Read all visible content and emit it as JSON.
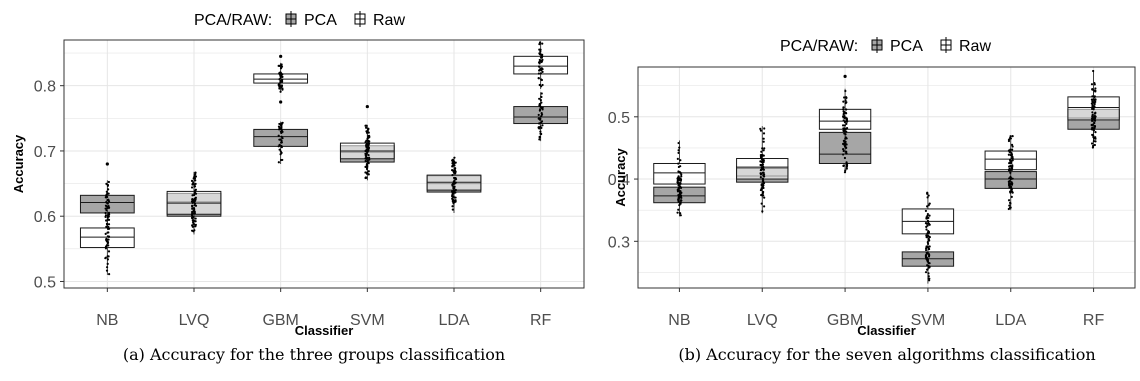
{
  "legend": {
    "title": "PCA/RAW:",
    "items": [
      "PCA",
      "Raw"
    ]
  },
  "colors": {
    "pca_fill": "#a6a6a6",
    "raw_fill": "#ffffff",
    "box_line": "#1a1a1a",
    "grid": "#e6e6e6",
    "panel_border": "#333333"
  },
  "chart_data": [
    {
      "type": "box",
      "caption": "(a) Accuracy for the three groups classification",
      "xlabel": "Classifier",
      "ylabel": "Accuracy",
      "categories": [
        "NB",
        "LVQ",
        "GBM",
        "SVM",
        "LDA",
        "RF"
      ],
      "ylim": [
        0.49,
        0.87
      ],
      "yticks": [
        0.5,
        0.6,
        0.7,
        0.8
      ],
      "ytick_labels": [
        "0.5",
        "0.6",
        "0.7",
        "0.8"
      ],
      "grid": true,
      "legend_position": "top",
      "series": [
        {
          "name": "PCA",
          "boxes": [
            {
              "q1": 0.605,
              "median": 0.621,
              "q3": 0.632,
              "min": 0.585,
              "max": 0.655
            },
            {
              "q1": 0.6,
              "median": 0.622,
              "q3": 0.635,
              "min": 0.572,
              "max": 0.665
            },
            {
              "q1": 0.707,
              "median": 0.722,
              "q3": 0.733,
              "min": 0.68,
              "max": 0.745
            },
            {
              "q1": 0.683,
              "median": 0.698,
              "q3": 0.708,
              "min": 0.655,
              "max": 0.74
            },
            {
              "q1": 0.637,
              "median": 0.65,
              "q3": 0.662,
              "min": 0.605,
              "max": 0.69
            },
            {
              "q1": 0.742,
              "median": 0.752,
              "q3": 0.768,
              "min": 0.715,
              "max": 0.79
            }
          ]
        },
        {
          "name": "Raw",
          "boxes": [
            {
              "q1": 0.552,
              "median": 0.568,
              "q3": 0.582,
              "min": 0.51,
              "max": 0.61
            },
            {
              "q1": 0.603,
              "median": 0.62,
              "q3": 0.638,
              "min": 0.575,
              "max": 0.668
            },
            {
              "q1": 0.804,
              "median": 0.81,
              "q3": 0.818,
              "min": 0.79,
              "max": 0.835
            },
            {
              "q1": 0.688,
              "median": 0.7,
              "q3": 0.712,
              "min": 0.665,
              "max": 0.73
            },
            {
              "q1": 0.64,
              "median": 0.652,
              "q3": 0.663,
              "min": 0.615,
              "max": 0.69
            },
            {
              "q1": 0.818,
              "median": 0.83,
              "q3": 0.845,
              "min": 0.795,
              "max": 0.868
            }
          ]
        }
      ],
      "outliers": [
        {
          "category": "NB",
          "value": 0.68
        },
        {
          "category": "GBM",
          "value": 0.845
        },
        {
          "category": "GBM",
          "value": 0.775
        },
        {
          "category": "SVM",
          "value": 0.768
        }
      ]
    },
    {
      "type": "box",
      "caption": "(b) Accuracy for the seven algorithms classification",
      "xlabel": "Classifier",
      "ylabel": "Accuracy",
      "categories": [
        "NB",
        "LVQ",
        "GBM",
        "SVM",
        "LDA",
        "RF"
      ],
      "ylim": [
        0.225,
        0.58
      ],
      "yticks": [
        0.3,
        0.4,
        0.5
      ],
      "ytick_labels": [
        "0.3",
        "0.4",
        "0.5"
      ],
      "grid": true,
      "legend_position": "top",
      "series": [
        {
          "name": "PCA",
          "boxes": [
            {
              "q1": 0.362,
              "median": 0.373,
              "q3": 0.387,
              "min": 0.34,
              "max": 0.405
            },
            {
              "q1": 0.395,
              "median": 0.405,
              "q3": 0.42,
              "min": 0.37,
              "max": 0.44
            },
            {
              "q1": 0.425,
              "median": 0.44,
              "q3": 0.475,
              "min": 0.41,
              "max": 0.52
            },
            {
              "q1": 0.26,
              "median": 0.272,
              "q3": 0.283,
              "min": 0.232,
              "max": 0.3
            },
            {
              "q1": 0.385,
              "median": 0.4,
              "q3": 0.412,
              "min": 0.35,
              "max": 0.44
            },
            {
              "q1": 0.48,
              "median": 0.498,
              "q3": 0.512,
              "min": 0.45,
              "max": 0.545
            }
          ]
        },
        {
          "name": "Raw",
          "boxes": [
            {
              "q1": 0.392,
              "median": 0.41,
              "q3": 0.425,
              "min": 0.36,
              "max": 0.462
            },
            {
              "q1": 0.4,
              "median": 0.418,
              "q3": 0.433,
              "min": 0.345,
              "max": 0.485
            },
            {
              "q1": 0.48,
              "median": 0.493,
              "q3": 0.512,
              "min": 0.44,
              "max": 0.545
            },
            {
              "q1": 0.312,
              "median": 0.332,
              "q3": 0.352,
              "min": 0.285,
              "max": 0.378
            },
            {
              "q1": 0.415,
              "median": 0.432,
              "q3": 0.445,
              "min": 0.38,
              "max": 0.47
            },
            {
              "q1": 0.495,
              "median": 0.515,
              "q3": 0.532,
              "min": 0.46,
              "max": 0.575
            }
          ]
        }
      ],
      "outliers": [
        {
          "category": "GBM",
          "value": 0.565
        }
      ]
    }
  ]
}
